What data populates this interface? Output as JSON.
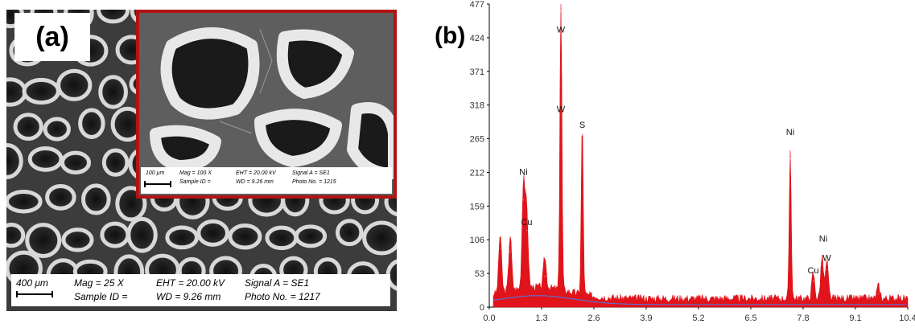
{
  "panel_a": {
    "label": "(a)",
    "main_databar": {
      "scale_bar": "400 μm",
      "mag": "Mag =    25 X",
      "sample_id": "Sample ID =",
      "eht": "EHT = 20.00 kV",
      "wd": "WD = 9.26 mm",
      "signal": "Signal A = SE1",
      "photo": "Photo No. = 1217"
    },
    "inset_databar": {
      "scale_bar": "100 μm",
      "mag": "Mag =   100 X",
      "sample_id": "Sample ID =",
      "eht": "EHT = 20.00 kV",
      "wd": "WD = 9.26 mm",
      "signal": "Signal A = SE1",
      "photo": "Photo No. = 1215"
    },
    "inset_border_color": "#b01414"
  },
  "panel_b": {
    "label": "(b)"
  },
  "chart_data": {
    "type": "area",
    "title": "",
    "xlabel": "",
    "ylabel": "",
    "xlim": [
      0.0,
      10.4
    ],
    "ylim": [
      0,
      477
    ],
    "x_ticks": [
      "0.0",
      "1.3",
      "2.6",
      "3.9",
      "5.2",
      "6.5",
      "7.8",
      "9.1",
      "10.4"
    ],
    "y_ticks": [
      "0",
      "53",
      "106",
      "159",
      "212",
      "265",
      "318",
      "371",
      "424",
      "477"
    ],
    "fill_color": "#e0141a",
    "background_color": "#5a6fd0",
    "series": [
      {
        "peaks": [
          {
            "x": 0.27,
            "y": 92
          },
          {
            "x": 0.52,
            "y": 87
          },
          {
            "x": 0.85,
            "y": 168
          },
          {
            "x": 0.93,
            "y": 120
          },
          {
            "x": 1.38,
            "y": 48
          },
          {
            "x": 1.78,
            "y": 465
          },
          {
            "x": 2.31,
            "y": 270
          },
          {
            "x": 7.48,
            "y": 233
          },
          {
            "x": 8.05,
            "y": 40
          },
          {
            "x": 8.27,
            "y": 65
          },
          {
            "x": 8.39,
            "y": 58
          },
          {
            "x": 9.67,
            "y": 20
          }
        ]
      }
    ],
    "annotations": [
      {
        "text": "W",
        "x": 1.78,
        "y": 432
      },
      {
        "text": "W",
        "x": 1.78,
        "y": 307
      },
      {
        "text": "S",
        "x": 2.31,
        "y": 282
      },
      {
        "text": "Ni",
        "x": 0.85,
        "y": 208
      },
      {
        "text": "Cu",
        "x": 0.93,
        "y": 129
      },
      {
        "text": "Ni",
        "x": 7.48,
        "y": 271
      },
      {
        "text": "Ni",
        "x": 8.3,
        "y": 103
      },
      {
        "text": "Cu",
        "x": 8.05,
        "y": 53
      },
      {
        "text": "W",
        "x": 8.39,
        "y": 73
      }
    ]
  }
}
